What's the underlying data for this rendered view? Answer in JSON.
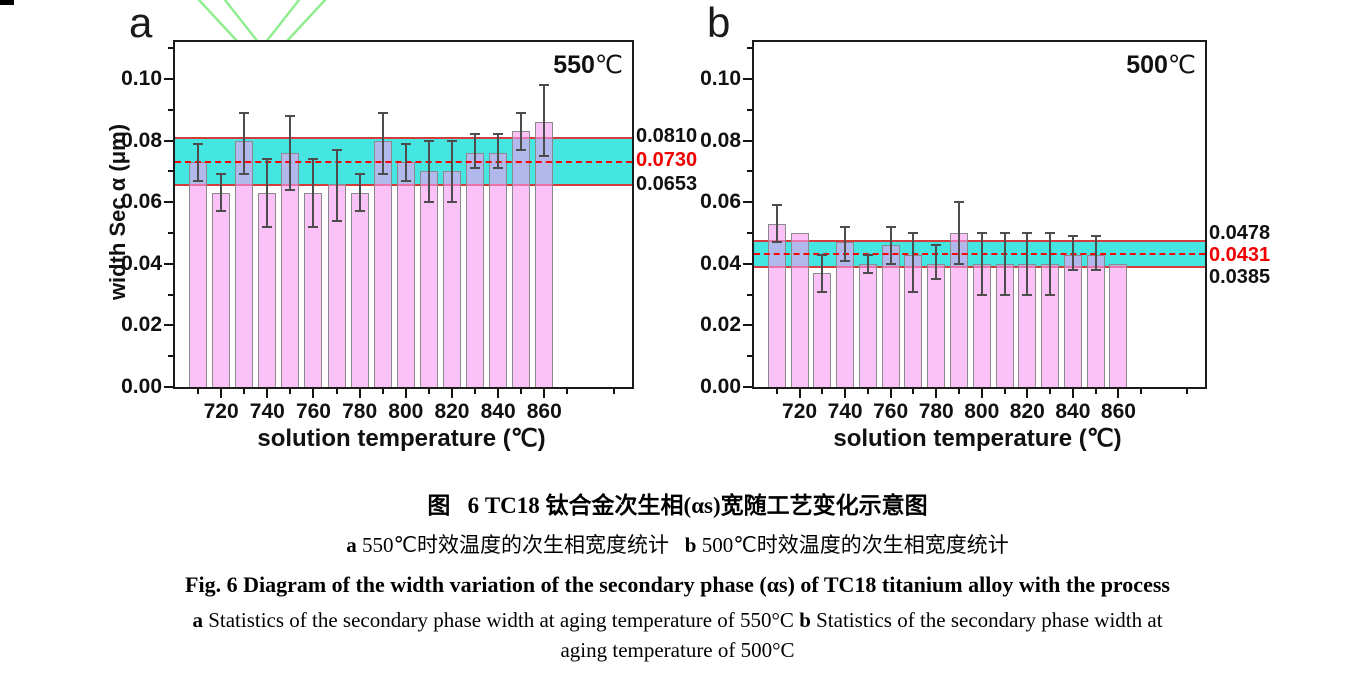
{
  "figure": {
    "watermark": {
      "shape": "v-chevron-outline",
      "color": "#90EE90"
    },
    "panels": [
      {
        "letter": "a",
        "condition_value": "550",
        "condition_unit": "℃",
        "y_axis_title": "width Sec α (μm)",
        "x_axis_title": "solution temperature (℃)",
        "annotations": {
          "upper": "0.0810",
          "mean": "0.0730",
          "lower": "0.0653"
        }
      },
      {
        "letter": "b",
        "condition_value": "500",
        "condition_unit": "℃",
        "y_axis_title": "",
        "x_axis_title": "solution temperature (℃)",
        "annotations": {
          "upper": "0.0478",
          "mean": "0.0431",
          "lower": "0.0385"
        }
      }
    ]
  },
  "chart_data": [
    {
      "type": "bar",
      "title": "550℃ aging",
      "xlabel": "solution temperature (℃)",
      "ylabel": "width Sec α (μm)",
      "x": [
        710,
        720,
        730,
        740,
        750,
        760,
        770,
        780,
        790,
        800,
        810,
        820,
        830,
        840,
        850,
        860
      ],
      "values": [
        0.073,
        0.063,
        0.08,
        0.063,
        0.076,
        0.063,
        0.066,
        0.063,
        0.08,
        0.073,
        0.07,
        0.07,
        0.076,
        0.076,
        0.083,
        0.086
      ],
      "error_plus": [
        0.006,
        0.006,
        0.009,
        0.011,
        0.012,
        0.011,
        0.011,
        0.006,
        0.009,
        0.006,
        0.01,
        0.01,
        0.006,
        0.006,
        0.006,
        0.012
      ],
      "error_minus": [
        0.006,
        0.006,
        0.011,
        0.011,
        0.012,
        0.011,
        0.012,
        0.006,
        0.011,
        0.006,
        0.01,
        0.01,
        0.005,
        0.005,
        0.006,
        0.011
      ],
      "band": {
        "lower": 0.0653,
        "mean": 0.073,
        "upper": 0.081
      },
      "ylim": [
        0,
        0.112
      ],
      "xlim": [
        700,
        898
      ],
      "yticks": [
        0.0,
        0.02,
        0.04,
        0.06,
        0.08,
        0.1
      ],
      "yticks_minor": [
        0.01,
        0.03,
        0.05,
        0.07,
        0.09,
        0.11
      ],
      "xticks": [
        720,
        740,
        760,
        780,
        800,
        820,
        840,
        860
      ],
      "xticks_minor": [
        710,
        730,
        750,
        770,
        790,
        810,
        830,
        850,
        870,
        890
      ],
      "grid": false,
      "legend": null,
      "bar_color": "#F899F3",
      "bar_alpha": 0.6,
      "band_color": "#45E5E2",
      "band_border_color": "#D43B3B",
      "mean_line_color": "#FF0000",
      "error_color": "#4D4D4D"
    },
    {
      "type": "bar",
      "title": "500℃ aging",
      "xlabel": "solution temperature (℃)",
      "ylabel": "width Sec α (μm)",
      "x": [
        710,
        720,
        730,
        740,
        750,
        760,
        770,
        780,
        790,
        800,
        810,
        820,
        830,
        840,
        850,
        860
      ],
      "values": [
        0.053,
        0.05,
        0.037,
        0.047,
        0.04,
        0.046,
        0.043,
        0.04,
        0.05,
        0.04,
        0.04,
        0.04,
        0.04,
        0.043,
        0.043,
        0.04
      ],
      "error_plus": [
        0.006,
        0,
        0.006,
        0.005,
        0.003,
        0.006,
        0.007,
        0.006,
        0.01,
        0.01,
        0.01,
        0.01,
        0.01,
        0.006,
        0.006,
        0
      ],
      "error_minus": [
        0.006,
        0,
        0.006,
        0.006,
        0.003,
        0.006,
        0.012,
        0.005,
        0.01,
        0.01,
        0.01,
        0.01,
        0.01,
        0.005,
        0.005,
        0
      ],
      "band": {
        "lower": 0.0385,
        "mean": 0.0431,
        "upper": 0.0478
      },
      "ylim": [
        0,
        0.112
      ],
      "xlim": [
        700,
        898
      ],
      "yticks": [
        0.0,
        0.02,
        0.04,
        0.06,
        0.08,
        0.1
      ],
      "yticks_minor": [
        0.01,
        0.03,
        0.05,
        0.07,
        0.09,
        0.11
      ],
      "xticks": [
        720,
        740,
        760,
        780,
        800,
        820,
        840,
        860
      ],
      "xticks_minor": [
        710,
        730,
        750,
        770,
        790,
        810,
        830,
        850,
        870,
        890
      ],
      "grid": false,
      "legend": null,
      "bar_color": "#F899F3",
      "bar_alpha": 0.6,
      "band_color": "#45E5E2",
      "band_border_color": "#D43B3B",
      "mean_line_color": "#FF0000",
      "error_color": "#4D4D4D"
    }
  ],
  "caption": {
    "line1": "图  6 TC18 钛合金次生相(αs)宽随工艺变化示意图",
    "line2_a": "a",
    "line2_text1": " 550℃时效温度的次生相宽度统计  ",
    "line2_b": "b",
    "line2_text2": " 500℃时效温度的次生相宽度统计",
    "line3": "Fig. 6 Diagram of the width variation of the secondary phase (αs) of TC18 titanium alloy with the process",
    "line4_a": "a",
    "line4_text1": " Statistics of the secondary phase width at aging temperature of 550°C ",
    "line4_b": "b",
    "line4_text2": " Statistics of the secondary phase width at",
    "line5": "aging temperature of 500°C"
  }
}
